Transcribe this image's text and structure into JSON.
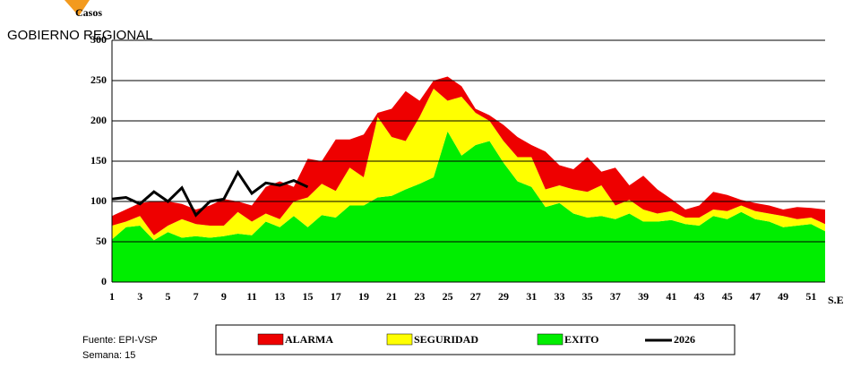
{
  "chart_data": {
    "type": "stacked_area",
    "brand": "GOBIERNO REGIONAL",
    "ylabel": "Casos",
    "xlabel": "S.E",
    "source": "Fuente: EPI-VSP",
    "week_note": "Semana: 15",
    "categories": [
      1,
      null,
      3,
      null,
      5,
      null,
      7,
      null,
      9,
      null,
      11,
      null,
      13,
      null,
      15,
      null,
      17,
      null,
      19,
      null,
      21,
      null,
      23,
      null,
      25,
      null,
      27,
      null,
      29,
      null,
      31,
      null,
      33,
      null,
      35,
      null,
      37,
      null,
      39,
      null,
      41,
      null,
      43,
      null,
      45,
      null,
      47,
      null,
      49,
      null,
      51,
      null
    ],
    "series": [
      {
        "name": "EXITO",
        "color": "#00ee00",
        "values": [
          53,
          68,
          70,
          52,
          62,
          55,
          57,
          55,
          57,
          60,
          58,
          75,
          68,
          82,
          68,
          83,
          80,
          95,
          95,
          105,
          107,
          115,
          122,
          130,
          187,
          157,
          170,
          175,
          148,
          125,
          118,
          93,
          98,
          85,
          80,
          82,
          78,
          85,
          75,
          75,
          77,
          72,
          70,
          82,
          78,
          87,
          78,
          75,
          68,
          70,
          72,
          63
        ]
      },
      {
        "name": "SEGURIDAD",
        "color": "#ffff00",
        "values": [
          17,
          7,
          12,
          6,
          8,
          23,
          15,
          15,
          13,
          27,
          17,
          10,
          10,
          18,
          37,
          39,
          33,
          47,
          35,
          100,
          73,
          60,
          83,
          110,
          38,
          73,
          40,
          25,
          27,
          30,
          37,
          22,
          22,
          30,
          32,
          38,
          17,
          17,
          15,
          10,
          11,
          8,
          10,
          8,
          10,
          8,
          10,
          10,
          14,
          8,
          8,
          9
        ]
      },
      {
        "name": "ALARMA",
        "color": "#ee0000",
        "values": [
          12,
          15,
          16,
          42,
          30,
          19,
          18,
          25,
          33,
          13,
          20,
          33,
          47,
          18,
          48,
          28,
          64,
          35,
          53,
          5,
          35,
          62,
          20,
          10,
          30,
          13,
          5,
          7,
          20,
          25,
          15,
          47,
          25,
          25,
          43,
          17,
          47,
          18,
          42,
          30,
          15,
          10,
          15,
          22,
          20,
          7,
          10,
          10,
          8,
          15,
          12,
          18
        ]
      }
    ],
    "line": {
      "name": "2026",
      "color": "#000000",
      "values": [
        103,
        105,
        97,
        112,
        100,
        117,
        83,
        100,
        103,
        136,
        110,
        123,
        120,
        126,
        118,
        null,
        null,
        null,
        null,
        null,
        null,
        null,
        null,
        null,
        null,
        null,
        null,
        null,
        null,
        null,
        null,
        null,
        null,
        null,
        null,
        null,
        null,
        null,
        null,
        null,
        null,
        null,
        null,
        null,
        null,
        null,
        null,
        null,
        null,
        null,
        null,
        null
      ]
    },
    "ylim": [
      0,
      300
    ],
    "yticks": [
      0,
      50,
      100,
      150,
      200,
      250,
      300
    ],
    "grid": true
  }
}
